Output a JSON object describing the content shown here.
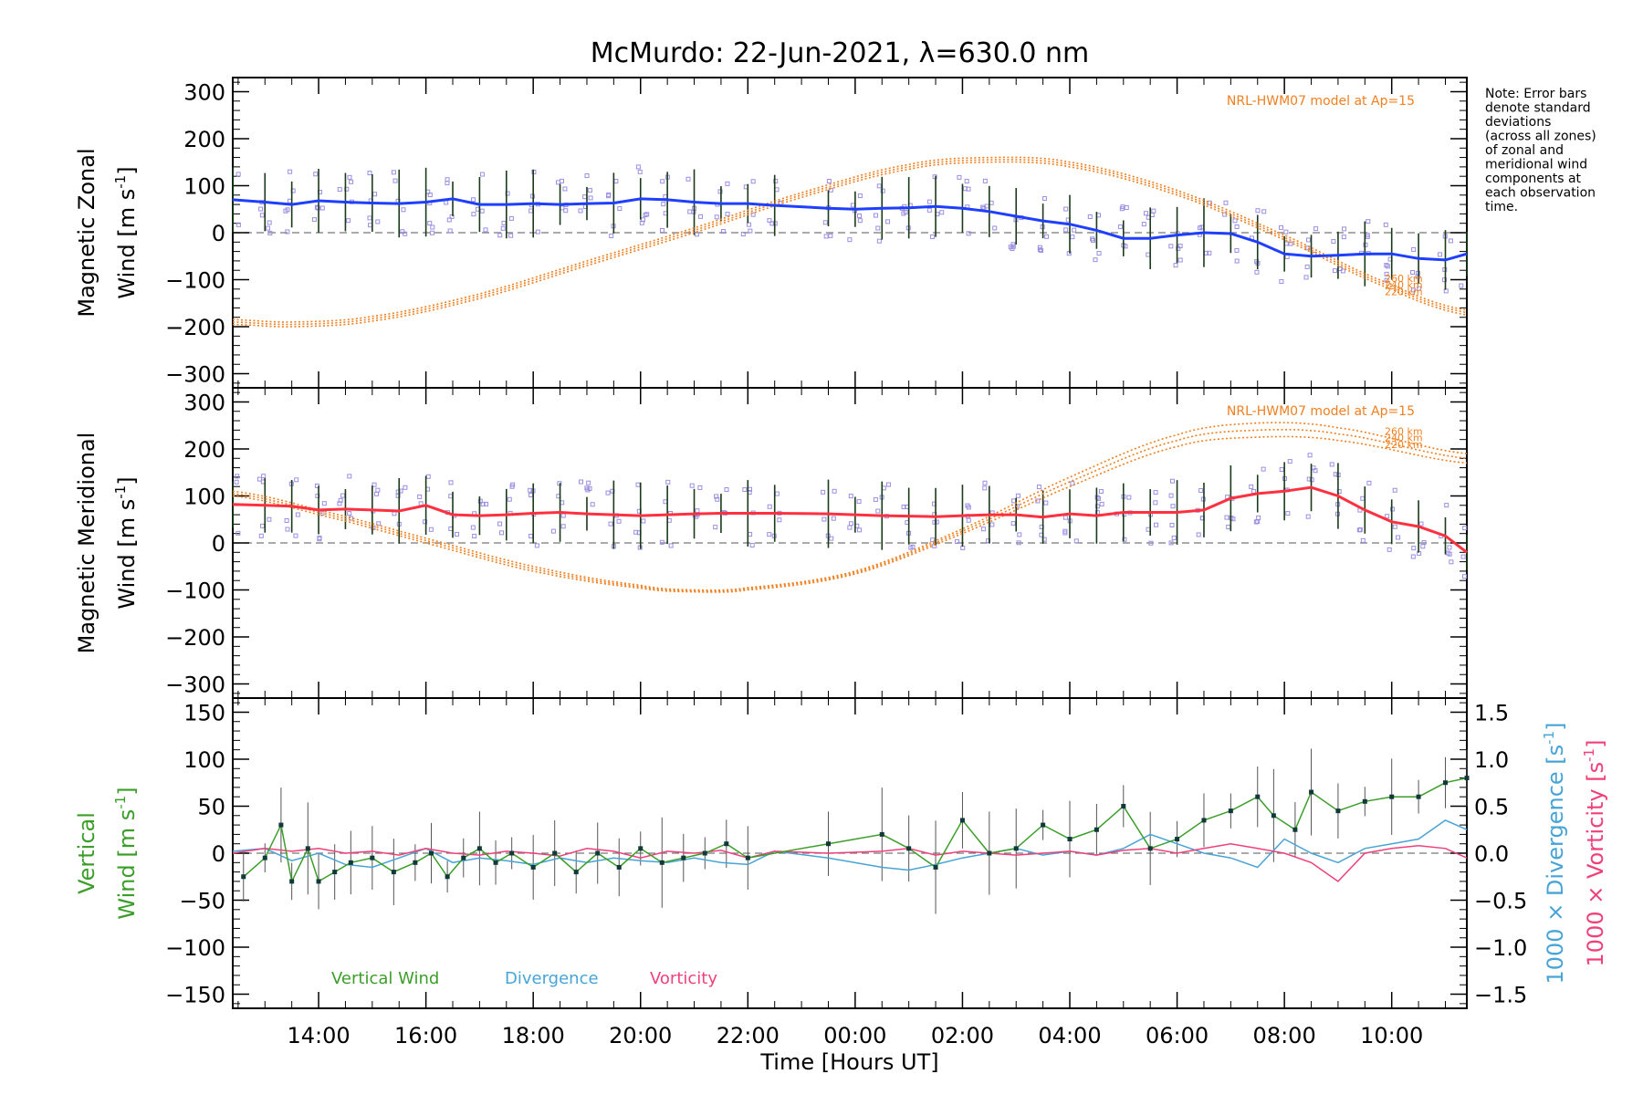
{
  "figure": {
    "title": "McMurdo: 22-Jun-2021, λ=630.0 nm",
    "note_lines": [
      "Note: Error bars",
      "denote standard",
      "deviations",
      "(across all zones)",
      "of zonal and",
      "meridional wind",
      "components at",
      "each observation",
      "time."
    ],
    "colors": {
      "zonal": "#1f3fff",
      "meridional": "#ff3040",
      "model": "#f08020",
      "zone_points": "#9a8fe0",
      "vertical": "#3c9e2a",
      "divergence": "#48a4d6",
      "vorticity": "#f0407a"
    }
  },
  "chart_data": [
    {
      "type": "line",
      "panel": "zonal",
      "ylabel_line1": "Magnetic Zonal",
      "ylabel_line2_prefix": "Wind [m s",
      "ylabel_sup": "-1",
      "ylabel_suffix": "]",
      "xlim": [
        12.4,
        35.4
      ],
      "ylim": [
        -330,
        330
      ],
      "ytick_values": [
        300,
        200,
        100,
        0,
        -100,
        -200,
        -300
      ],
      "ytick_labels": [
        "300",
        "200",
        "100",
        "0",
        "−100",
        "−200",
        "−300"
      ],
      "model_label": "NRL-HWM07 model at Ap=15",
      "model_altitude_labels": [
        "260 km",
        "240 km",
        "220 km"
      ],
      "series": [
        {
          "name": "Zonal wind",
          "x": [
            12.4,
            13.0,
            13.5,
            14.0,
            14.5,
            15.0,
            15.5,
            16.0,
            16.5,
            17.0,
            17.5,
            18.0,
            18.5,
            19.0,
            19.5,
            20.0,
            20.5,
            21.0,
            21.5,
            22.0,
            22.5,
            23.5,
            24.0,
            24.5,
            25.0,
            25.5,
            26.0,
            26.5,
            27.0,
            27.5,
            28.0,
            28.5,
            29.0,
            29.5,
            30.0,
            30.5,
            31.0,
            31.5,
            32.0,
            32.5,
            33.0,
            33.5,
            34.0,
            34.5,
            35.0,
            35.4
          ],
          "y": [
            70,
            65,
            60,
            68,
            65,
            63,
            62,
            65,
            72,
            60,
            60,
            62,
            60,
            62,
            63,
            72,
            70,
            65,
            62,
            62,
            58,
            52,
            50,
            52,
            53,
            56,
            52,
            45,
            35,
            25,
            18,
            5,
            -12,
            -12,
            -5,
            0,
            -2,
            -20,
            -45,
            -50,
            -48,
            -45,
            -45,
            -55,
            -58,
            -45
          ]
        },
        {
          "name": "Model 260 km",
          "x": [
            12.4,
            13.5,
            15.0,
            17.0,
            19.0,
            21.0,
            23.0,
            25.0,
            26.5,
            28.0,
            30.0,
            32.0,
            34.0,
            35.4
          ],
          "y": [
            -185,
            -190,
            -178,
            -130,
            -60,
            10,
            85,
            145,
            160,
            150,
            90,
            -5,
            -110,
            -165
          ]
        },
        {
          "name": "Model 240 km",
          "x": [
            12.4,
            13.5,
            15.0,
            17.0,
            19.0,
            21.0,
            23.0,
            25.0,
            26.5,
            28.0,
            30.0,
            32.0,
            34.0,
            35.4
          ],
          "y": [
            -190,
            -195,
            -183,
            -135,
            -65,
            5,
            80,
            140,
            155,
            145,
            85,
            -10,
            -115,
            -170
          ]
        },
        {
          "name": "Model 220 km",
          "x": [
            12.4,
            13.5,
            15.0,
            17.0,
            19.0,
            21.0,
            23.0,
            25.0,
            26.5,
            28.0,
            30.0,
            32.0,
            34.0,
            35.4
          ],
          "y": [
            -195,
            -200,
            -188,
            -140,
            -70,
            0,
            75,
            135,
            150,
            140,
            80,
            -15,
            -120,
            -175
          ]
        }
      ]
    },
    {
      "type": "line",
      "panel": "meridional",
      "ylabel_line1": "Magnetic Meridional",
      "ylabel_line2_prefix": "Wind [m s",
      "ylabel_sup": "-1",
      "ylabel_suffix": "]",
      "xlim": [
        12.4,
        35.4
      ],
      "ylim": [
        -330,
        330
      ],
      "ytick_values": [
        300,
        200,
        100,
        0,
        -100,
        -200,
        -300
      ],
      "ytick_labels": [
        "300",
        "200",
        "100",
        "0",
        "−100",
        "−200",
        "−300"
      ],
      "model_label": "NRL-HWM07 model at Ap=15",
      "model_altitude_labels": [
        "260 km",
        "240 km",
        "220 km"
      ],
      "series": [
        {
          "name": "Meridional wind",
          "x": [
            12.4,
            13.0,
            13.5,
            14.0,
            14.5,
            15.0,
            15.5,
            16.0,
            16.5,
            17.0,
            17.5,
            18.0,
            18.5,
            19.0,
            19.5,
            20.0,
            20.5,
            21.0,
            21.5,
            22.0,
            22.5,
            23.5,
            24.0,
            24.5,
            25.0,
            25.5,
            26.0,
            26.5,
            27.0,
            27.5,
            28.0,
            28.5,
            29.0,
            29.5,
            30.0,
            30.5,
            31.0,
            31.5,
            32.0,
            32.5,
            33.0,
            33.5,
            34.0,
            34.5,
            35.0,
            35.4
          ],
          "y": [
            82,
            80,
            78,
            70,
            72,
            70,
            68,
            80,
            60,
            58,
            60,
            63,
            65,
            62,
            60,
            58,
            60,
            62,
            63,
            63,
            63,
            62,
            60,
            58,
            57,
            56,
            58,
            60,
            60,
            55,
            62,
            58,
            65,
            65,
            65,
            70,
            95,
            105,
            110,
            118,
            100,
            70,
            45,
            35,
            15,
            -20
          ]
        },
        {
          "name": "Model 260 km",
          "x": [
            12.4,
            14.0,
            16.0,
            18.0,
            20.0,
            21.0,
            22.0,
            24.0,
            26.0,
            28.0,
            30.0,
            31.5,
            33.0,
            35.4
          ],
          "y": [
            110,
            70,
            10,
            -50,
            -90,
            -100,
            -95,
            -60,
            30,
            140,
            230,
            255,
            245,
            190
          ]
        },
        {
          "name": "Model 240 km",
          "x": [
            12.4,
            14.0,
            16.0,
            18.0,
            20.0,
            21.0,
            22.0,
            24.0,
            26.0,
            28.0,
            30.0,
            31.5,
            33.0,
            35.4
          ],
          "y": [
            105,
            65,
            5,
            -55,
            -93,
            -102,
            -97,
            -63,
            25,
            130,
            218,
            240,
            232,
            180
          ]
        },
        {
          "name": "Model 220 km",
          "x": [
            12.4,
            14.0,
            16.0,
            18.0,
            20.0,
            21.0,
            22.0,
            24.0,
            26.0,
            28.0,
            30.0,
            31.5,
            33.0,
            35.4
          ],
          "y": [
            100,
            60,
            0,
            -60,
            -96,
            -104,
            -100,
            -66,
            20,
            120,
            205,
            225,
            218,
            170
          ]
        }
      ]
    },
    {
      "type": "line",
      "panel": "vertical",
      "ylabel_left_line1": "Vertical",
      "ylabel_left_line2_prefix": "Wind [m s",
      "ylabel_right_div_prefix": "1000 × Divergence [s",
      "ylabel_right_vort_prefix": "1000 × Vorticity [s",
      "ylabel_sup": "-1",
      "ylabel_suffix": "]",
      "xlim": [
        12.4,
        35.4
      ],
      "ylim": [
        -165,
        165
      ],
      "ylim_right": [
        -1.65,
        1.65
      ],
      "ytick_values": [
        150,
        100,
        50,
        0,
        -50,
        -100,
        -150
      ],
      "ytick_labels": [
        "150",
        "100",
        "50",
        "0",
        "−50",
        "−100",
        "−150"
      ],
      "ytick_right_values": [
        1.5,
        1.0,
        0.5,
        0.0,
        -0.5,
        -1.0,
        -1.5
      ],
      "ytick_right_labels": [
        "1.5",
        "1.0",
        "0.5",
        "0.0",
        "−0.5",
        "−1.0",
        "−1.5"
      ],
      "legend": [
        "Vertical Wind",
        "Divergence",
        "Vorticity"
      ],
      "series": [
        {
          "name": "Vertical Wind",
          "x": [
            12.6,
            13.0,
            13.3,
            13.5,
            13.8,
            14.0,
            14.3,
            14.6,
            15.0,
            15.4,
            15.8,
            16.1,
            16.4,
            16.7,
            17.0,
            17.3,
            17.6,
            18.0,
            18.4,
            18.8,
            19.2,
            19.6,
            20.0,
            20.4,
            20.8,
            21.2,
            21.6,
            22.0,
            23.5,
            24.5,
            25.0,
            25.5,
            26.0,
            26.5,
            27.0,
            27.5,
            28.0,
            28.5,
            29.0,
            29.5,
            30.0,
            30.5,
            31.0,
            31.5,
            31.8,
            32.2,
            32.5,
            33.0,
            33.5,
            34.0,
            34.5,
            35.0,
            35.4
          ],
          "y": [
            -25,
            -5,
            30,
            -30,
            5,
            -30,
            -20,
            -10,
            -5,
            -20,
            -10,
            0,
            -25,
            -5,
            5,
            -10,
            0,
            -15,
            0,
            -20,
            0,
            -15,
            5,
            -10,
            -5,
            0,
            10,
            -5,
            10,
            20,
            5,
            -15,
            35,
            0,
            5,
            30,
            15,
            25,
            50,
            5,
            15,
            35,
            45,
            60,
            40,
            25,
            65,
            45,
            55,
            60,
            60,
            75,
            80
          ]
        },
        {
          "name": "Divergence",
          "x": [
            12.4,
            13.0,
            13.5,
            14.0,
            14.5,
            15.0,
            15.5,
            16.0,
            16.5,
            17.0,
            17.5,
            18.0,
            18.5,
            19.0,
            19.5,
            20.0,
            20.5,
            21.0,
            21.5,
            22.0,
            22.5,
            23.5,
            24.5,
            25.0,
            25.5,
            26.0,
            26.5,
            27.0,
            27.5,
            28.0,
            28.5,
            29.0,
            29.5,
            30.0,
            30.5,
            31.0,
            31.5,
            32.0,
            32.5,
            33.0,
            33.5,
            34.0,
            34.5,
            35.0,
            35.4
          ],
          "y": [
            0.02,
            0.05,
            -0.08,
            0.0,
            -0.12,
            -0.15,
            -0.05,
            0.05,
            -0.1,
            -0.05,
            -0.08,
            -0.12,
            -0.05,
            -0.1,
            -0.05,
            -0.08,
            -0.1,
            -0.05,
            -0.1,
            -0.12,
            0.02,
            -0.05,
            -0.15,
            -0.18,
            -0.12,
            -0.05,
            0.0,
            0.05,
            -0.02,
            0.02,
            -0.02,
            0.05,
            0.2,
            0.1,
            0.0,
            -0.05,
            -0.15,
            0.15,
            0.0,
            -0.1,
            0.05,
            0.1,
            0.15,
            0.35,
            0.25
          ]
        },
        {
          "name": "Vorticity",
          "x": [
            12.4,
            13.0,
            13.5,
            14.0,
            14.5,
            15.0,
            15.5,
            16.0,
            16.5,
            17.0,
            17.5,
            18.0,
            18.5,
            19.0,
            19.5,
            20.0,
            20.5,
            21.0,
            21.5,
            22.0,
            22.5,
            23.5,
            24.5,
            25.0,
            25.5,
            26.0,
            26.5,
            27.0,
            27.5,
            28.0,
            28.5,
            29.0,
            29.5,
            30.0,
            30.5,
            31.0,
            31.5,
            32.0,
            32.5,
            33.0,
            33.5,
            34.0,
            34.5,
            35.0,
            35.4
          ],
          "y": [
            0.0,
            0.05,
            0.02,
            0.05,
            0.0,
            0.02,
            -0.02,
            0.05,
            0.0,
            -0.02,
            0.02,
            0.0,
            -0.03,
            0.05,
            0.02,
            -0.05,
            0.02,
            0.0,
            0.03,
            -0.05,
            0.02,
            0.0,
            0.02,
            0.05,
            -0.02,
            0.02,
            0.0,
            -0.02,
            0.0,
            0.02,
            -0.02,
            0.03,
            0.05,
            0.0,
            0.05,
            0.1,
            0.05,
            0.0,
            -0.1,
            -0.3,
            0.0,
            0.05,
            0.08,
            0.05,
            -0.05
          ]
        }
      ]
    }
  ],
  "x_axis": {
    "label": "Time [Hours UT]",
    "tick_positions": [
      14,
      16,
      18,
      20,
      22,
      24,
      26,
      28,
      30,
      32,
      34
    ],
    "tick_labels": [
      "14:00",
      "16:00",
      "18:00",
      "20:00",
      "22:00",
      "00:00",
      "02:00",
      "04:00",
      "06:00",
      "08:00",
      "10:00"
    ]
  }
}
